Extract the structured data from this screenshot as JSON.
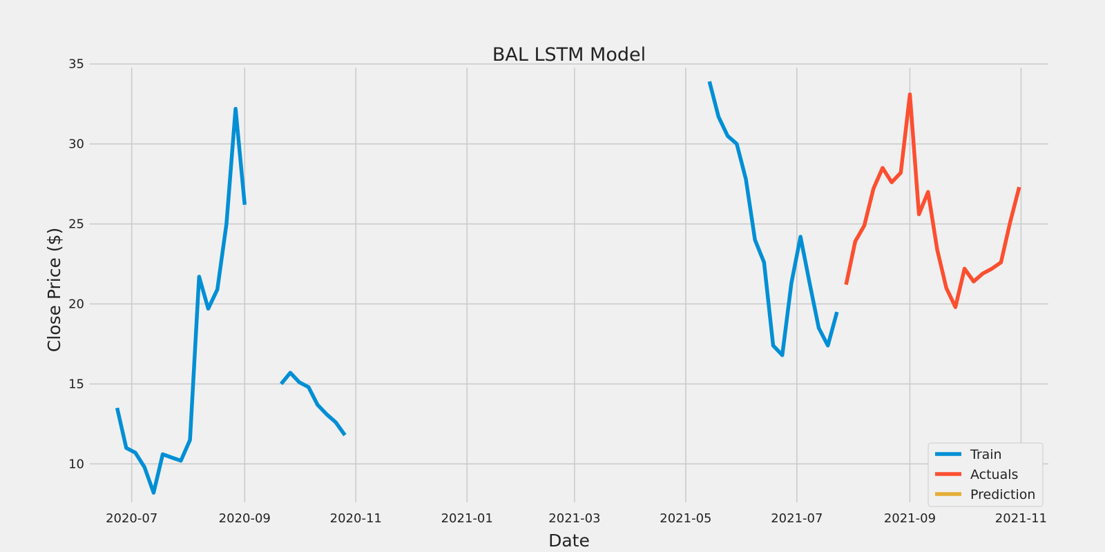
{
  "chart_data": {
    "type": "line",
    "title": "BAL LSTM Model",
    "xlabel": "Date",
    "ylabel": "Close Price ($)",
    "xlim": [
      "2020-06-08",
      "2021-11-16"
    ],
    "ylim": [
      7.6,
      35.2
    ],
    "x_ticks": [
      {
        "date": "2020-07-01",
        "label": "2020-07"
      },
      {
        "date": "2020-09-01",
        "label": "2020-09"
      },
      {
        "date": "2020-11-01",
        "label": "2020-11"
      },
      {
        "date": "2021-01-01",
        "label": "2021-01"
      },
      {
        "date": "2021-03-01",
        "label": "2021-03"
      },
      {
        "date": "2021-05-01",
        "label": "2021-05"
      },
      {
        "date": "2021-07-01",
        "label": "2021-07"
      },
      {
        "date": "2021-09-01",
        "label": "2021-09"
      },
      {
        "date": "2021-11-01",
        "label": "2021-11"
      }
    ],
    "y_ticks": [
      {
        "value": 10,
        "label": "10"
      },
      {
        "value": 15,
        "label": "15"
      },
      {
        "value": 20,
        "label": "20"
      },
      {
        "value": 25,
        "label": "25"
      },
      {
        "value": 30,
        "label": "30"
      },
      {
        "value": 35,
        "label": "35"
      }
    ],
    "grid": true,
    "legend_position": "lower-right",
    "series": [
      {
        "name": "Train",
        "color": "#008fd5",
        "segments": [
          [
            [
              "2020-06-23",
              13.5
            ],
            [
              "2020-06-28",
              11.0
            ],
            [
              "2020-07-03",
              10.7
            ],
            [
              "2020-07-08",
              9.8
            ],
            [
              "2020-07-13",
              8.2
            ],
            [
              "2020-07-18",
              10.6
            ],
            [
              "2020-07-23",
              10.4
            ],
            [
              "2020-07-28",
              10.2
            ],
            [
              "2020-08-02",
              11.5
            ],
            [
              "2020-08-07",
              21.7
            ],
            [
              "2020-08-12",
              19.7
            ],
            [
              "2020-08-17",
              20.9
            ],
            [
              "2020-08-22",
              25.0
            ],
            [
              "2020-08-27",
              32.2
            ],
            [
              "2020-09-01",
              26.2
            ]
          ],
          [
            [
              "2020-09-21",
              15.0
            ],
            [
              "2020-09-26",
              15.7
            ],
            [
              "2020-10-01",
              15.1
            ],
            [
              "2020-10-06",
              14.8
            ],
            [
              "2020-10-11",
              13.7
            ],
            [
              "2020-10-16",
              13.1
            ],
            [
              "2020-10-21",
              12.6
            ],
            [
              "2020-10-26",
              11.8
            ]
          ],
          [
            [
              "2021-05-14",
              33.9
            ],
            [
              "2021-05-19",
              31.7
            ],
            [
              "2021-05-24",
              30.5
            ],
            [
              "2021-05-29",
              30.0
            ],
            [
              "2021-06-03",
              27.8
            ],
            [
              "2021-06-08",
              24.0
            ],
            [
              "2021-06-13",
              22.6
            ],
            [
              "2021-06-18",
              17.4
            ],
            [
              "2021-06-23",
              16.8
            ],
            [
              "2021-06-28",
              21.3
            ],
            [
              "2021-07-03",
              24.2
            ],
            [
              "2021-07-08",
              21.3
            ],
            [
              "2021-07-13",
              18.5
            ],
            [
              "2021-07-18",
              17.4
            ],
            [
              "2021-07-23",
              19.5
            ]
          ]
        ]
      },
      {
        "name": "Actuals",
        "color": "#fc4f30",
        "segments": [
          [
            [
              "2021-07-28",
              21.2
            ],
            [
              "2021-08-02",
              23.9
            ],
            [
              "2021-08-07",
              24.9
            ],
            [
              "2021-08-12",
              27.2
            ],
            [
              "2021-08-17",
              28.5
            ],
            [
              "2021-08-22",
              27.6
            ],
            [
              "2021-08-27",
              28.2
            ],
            [
              "2021-09-01",
              33.1
            ],
            [
              "2021-09-06",
              25.6
            ],
            [
              "2021-09-11",
              27.0
            ],
            [
              "2021-09-16",
              23.4
            ],
            [
              "2021-09-21",
              21.0
            ],
            [
              "2021-09-26",
              19.8
            ],
            [
              "2021-10-01",
              22.2
            ],
            [
              "2021-10-06",
              21.4
            ],
            [
              "2021-10-11",
              21.9
            ],
            [
              "2021-10-16",
              22.2
            ],
            [
              "2021-10-21",
              22.6
            ],
            [
              "2021-10-26",
              25.1
            ],
            [
              "2021-10-31",
              27.3
            ]
          ]
        ]
      },
      {
        "name": "Prediction",
        "color": "#e5ae38",
        "segments": []
      }
    ]
  }
}
